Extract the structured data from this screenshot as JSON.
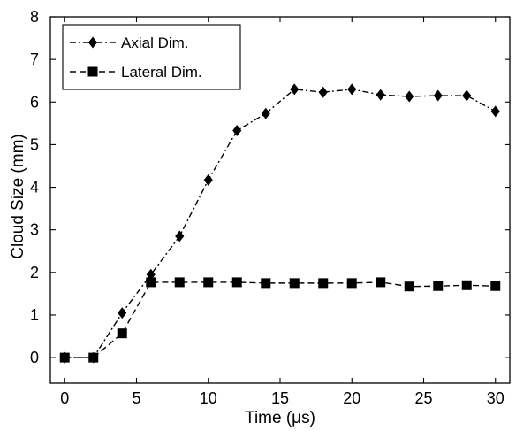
{
  "chart_data": {
    "type": "line",
    "title": "",
    "xlabel": "Time (μs)",
    "ylabel": "Cloud Size (mm)",
    "xlim": [
      -1,
      31
    ],
    "ylim": [
      -0.6,
      8
    ],
    "xticks": [
      0,
      5,
      10,
      15,
      20,
      25,
      30
    ],
    "yticks": [
      0,
      1,
      2,
      3,
      4,
      5,
      6,
      7,
      8
    ],
    "grid": false,
    "legend_position": "top-left",
    "x": [
      0,
      2,
      4,
      6,
      8,
      10,
      12,
      14,
      16,
      18,
      20,
      22,
      24,
      26,
      28,
      30
    ],
    "series": [
      {
        "name": "Axial Dim.",
        "line_style": "dash-dot",
        "marker": "diamond",
        "values": [
          0,
          0,
          1.05,
          1.95,
          2.85,
          4.17,
          5.33,
          5.73,
          6.3,
          6.23,
          6.3,
          6.17,
          6.13,
          6.15,
          6.15,
          5.78
        ]
      },
      {
        "name": "Lateral Dim.",
        "line_style": "dashed",
        "marker": "square",
        "values": [
          0,
          0,
          0.57,
          1.77,
          1.77,
          1.77,
          1.77,
          1.75,
          1.75,
          1.75,
          1.75,
          1.77,
          1.67,
          1.68,
          1.7,
          1.68
        ]
      }
    ],
    "colors": {
      "line": "#000000",
      "background": "#ffffff"
    }
  }
}
